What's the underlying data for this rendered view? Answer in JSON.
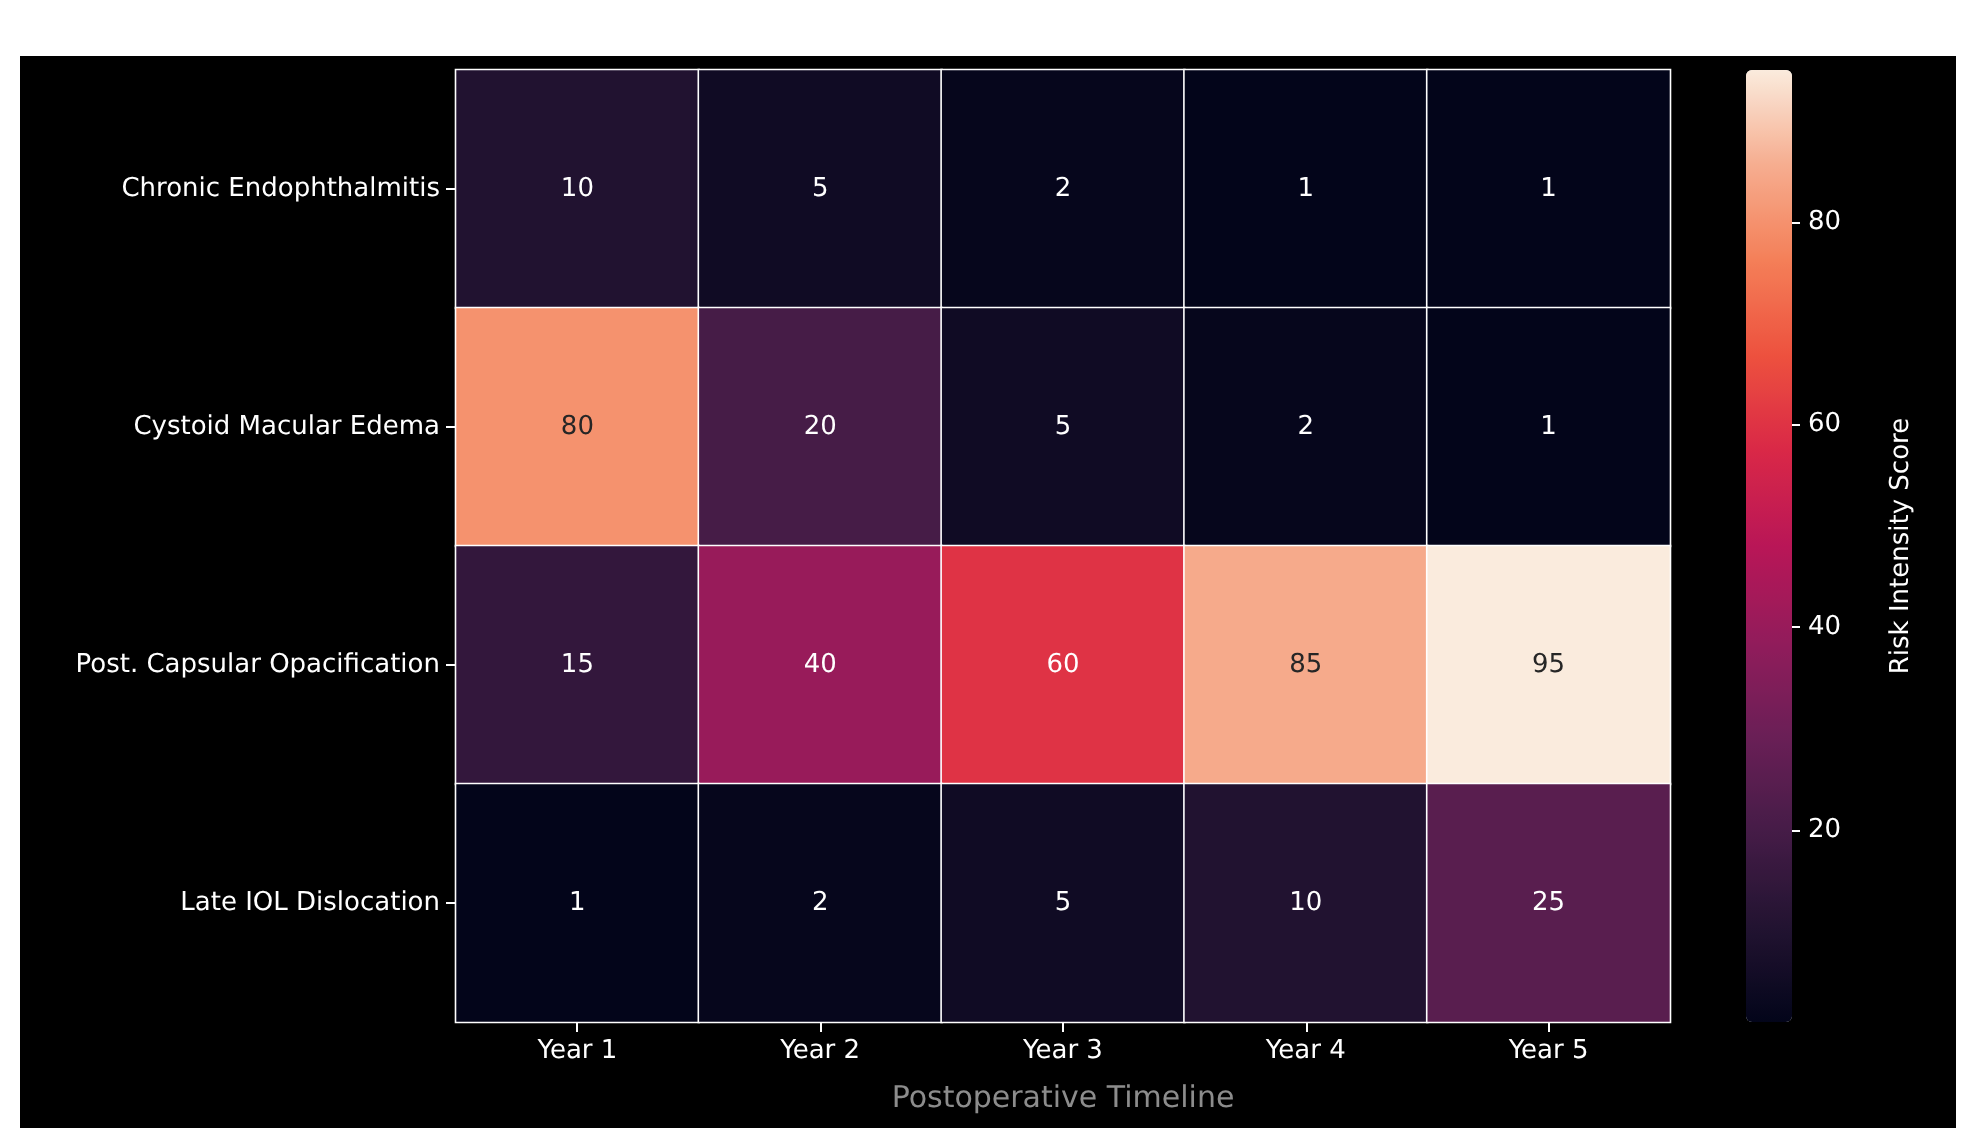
{
  "chart_data": {
    "type": "heatmap",
    "xlabel": "Postoperative Timeline",
    "clabel": "Risk Intensity Score",
    "categories": [
      "Year 1",
      "Year 2",
      "Year 3",
      "Year 4",
      "Year 5"
    ],
    "y_categories": [
      "Chronic Endophthalmitis",
      "Cystoid Macular Edema",
      "Post. Capsular Opacification",
      "Late IOL Dislocation"
    ],
    "cells": [
      [
        10,
        5,
        2,
        1,
        1
      ],
      [
        80,
        20,
        5,
        2,
        1
      ],
      [
        15,
        40,
        60,
        85,
        95
      ],
      [
        1,
        2,
        5,
        10,
        25
      ]
    ],
    "clim": [
      1,
      95
    ],
    "cticks": [
      20,
      40,
      60,
      80
    ],
    "data_labels": true
  }
}
